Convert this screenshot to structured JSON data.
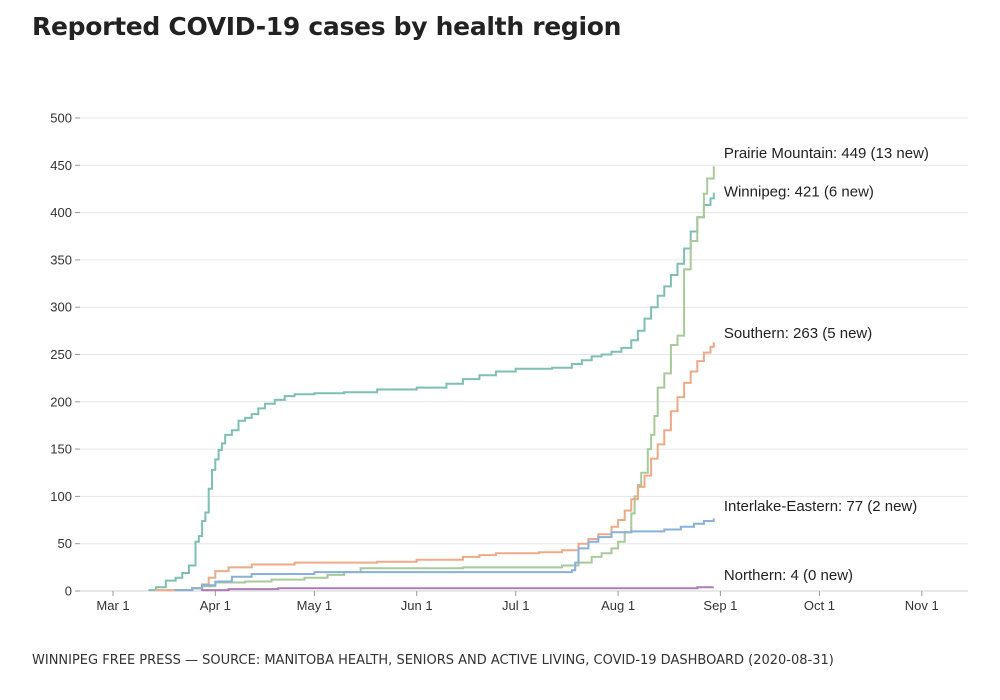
{
  "header": {
    "title": "Reported COVID-19 cases by health region"
  },
  "footer": {
    "source": "WINNIPEG FREE PRESS — SOURCE: MANITOBA HEALTH, SENIORS AND ACTIVE LIVING, COVID-19 DASHBOARD (2020-08-31)"
  },
  "chart_data": {
    "type": "line",
    "title": "Reported COVID-19 cases by health region",
    "xlabel": "",
    "ylabel": "",
    "ylim": [
      0,
      500
    ],
    "yticks": [
      0,
      50,
      100,
      150,
      200,
      250,
      300,
      350,
      400,
      450,
      500
    ],
    "xlim": [
      "2020-02-20",
      "2020-11-15"
    ],
    "xticks": [
      {
        "date": "2020-03-01",
        "label": "Mar 1"
      },
      {
        "date": "2020-04-01",
        "label": "Apr 1"
      },
      {
        "date": "2020-05-01",
        "label": "May 1"
      },
      {
        "date": "2020-06-01",
        "label": "Jun 1"
      },
      {
        "date": "2020-07-01",
        "label": "Jul 1"
      },
      {
        "date": "2020-08-01",
        "label": "Aug 1"
      },
      {
        "date": "2020-09-01",
        "label": "Sep 1"
      },
      {
        "date": "2020-10-01",
        "label": "Oct 1"
      },
      {
        "date": "2020-11-01",
        "label": "Nov 1"
      }
    ],
    "grid": true,
    "step": true,
    "series": [
      {
        "name": "Winnipeg",
        "label": "Winnipeg: 421 (6 new)",
        "color": "#7fbfb3",
        "points": [
          [
            "2020-03-12",
            1
          ],
          [
            "2020-03-14",
            4
          ],
          [
            "2020-03-17",
            11
          ],
          [
            "2020-03-20",
            14
          ],
          [
            "2020-03-22",
            19
          ],
          [
            "2020-03-24",
            27
          ],
          [
            "2020-03-26",
            52
          ],
          [
            "2020-03-27",
            58
          ],
          [
            "2020-03-28",
            74
          ],
          [
            "2020-03-29",
            83
          ],
          [
            "2020-03-30",
            108
          ],
          [
            "2020-03-31",
            128
          ],
          [
            "2020-04-01",
            139
          ],
          [
            "2020-04-02",
            149
          ],
          [
            "2020-04-03",
            156
          ],
          [
            "2020-04-04",
            165
          ],
          [
            "2020-04-06",
            170
          ],
          [
            "2020-04-08",
            180
          ],
          [
            "2020-04-10",
            183
          ],
          [
            "2020-04-12",
            187
          ],
          [
            "2020-04-14",
            193
          ],
          [
            "2020-04-16",
            198
          ],
          [
            "2020-04-19",
            202
          ],
          [
            "2020-04-22",
            206
          ],
          [
            "2020-04-25",
            208
          ],
          [
            "2020-05-01",
            209
          ],
          [
            "2020-05-10",
            210
          ],
          [
            "2020-05-20",
            213
          ],
          [
            "2020-06-01",
            215
          ],
          [
            "2020-06-10",
            219
          ],
          [
            "2020-06-15",
            224
          ],
          [
            "2020-06-20",
            228
          ],
          [
            "2020-06-25",
            232
          ],
          [
            "2020-07-01",
            235
          ],
          [
            "2020-07-12",
            236
          ],
          [
            "2020-07-18",
            240
          ],
          [
            "2020-07-21",
            244
          ],
          [
            "2020-07-24",
            248
          ],
          [
            "2020-07-27",
            250
          ],
          [
            "2020-07-30",
            253
          ],
          [
            "2020-08-02",
            257
          ],
          [
            "2020-08-05",
            265
          ],
          [
            "2020-08-07",
            275
          ],
          [
            "2020-08-09",
            288
          ],
          [
            "2020-08-11",
            300
          ],
          [
            "2020-08-13",
            312
          ],
          [
            "2020-08-15",
            322
          ],
          [
            "2020-08-17",
            334
          ],
          [
            "2020-08-19",
            346
          ],
          [
            "2020-08-21",
            362
          ],
          [
            "2020-08-23",
            380
          ],
          [
            "2020-08-25",
            395
          ],
          [
            "2020-08-27",
            408
          ],
          [
            "2020-08-29",
            415
          ],
          [
            "2020-08-30",
            421
          ]
        ]
      },
      {
        "name": "Prairie Mountain",
        "label": "Prairie Mountain: 449 (13 new)",
        "color": "#a8c99a",
        "points": [
          [
            "2020-03-18",
            1
          ],
          [
            "2020-03-25",
            3
          ],
          [
            "2020-03-28",
            5
          ],
          [
            "2020-04-01",
            9
          ],
          [
            "2020-04-10",
            10
          ],
          [
            "2020-04-18",
            12
          ],
          [
            "2020-04-28",
            14
          ],
          [
            "2020-05-05",
            17
          ],
          [
            "2020-05-10",
            20
          ],
          [
            "2020-05-15",
            24
          ],
          [
            "2020-06-15",
            25
          ],
          [
            "2020-07-15",
            27
          ],
          [
            "2020-07-20",
            30
          ],
          [
            "2020-07-24",
            36
          ],
          [
            "2020-07-27",
            40
          ],
          [
            "2020-07-30",
            45
          ],
          [
            "2020-08-01",
            52
          ],
          [
            "2020-08-03",
            62
          ],
          [
            "2020-08-05",
            82
          ],
          [
            "2020-08-06",
            100
          ],
          [
            "2020-08-07",
            112
          ],
          [
            "2020-08-08",
            125
          ],
          [
            "2020-08-10",
            150
          ],
          [
            "2020-08-11",
            165
          ],
          [
            "2020-08-12",
            185
          ],
          [
            "2020-08-13",
            215
          ],
          [
            "2020-08-15",
            230
          ],
          [
            "2020-08-17",
            260
          ],
          [
            "2020-08-19",
            270
          ],
          [
            "2020-08-21",
            340
          ],
          [
            "2020-08-23",
            370
          ],
          [
            "2020-08-25",
            395
          ],
          [
            "2020-08-27",
            420
          ],
          [
            "2020-08-28",
            436
          ],
          [
            "2020-08-30",
            449
          ]
        ]
      },
      {
        "name": "Southern",
        "label": "Southern: 263 (5 new)",
        "color": "#eeaa88",
        "points": [
          [
            "2020-03-14",
            1
          ],
          [
            "2020-03-25",
            3
          ],
          [
            "2020-03-28",
            7
          ],
          [
            "2020-03-30",
            14
          ],
          [
            "2020-04-01",
            21
          ],
          [
            "2020-04-05",
            25
          ],
          [
            "2020-04-12",
            28
          ],
          [
            "2020-04-25",
            30
          ],
          [
            "2020-05-20",
            31
          ],
          [
            "2020-06-01",
            33
          ],
          [
            "2020-06-15",
            36
          ],
          [
            "2020-06-20",
            38
          ],
          [
            "2020-06-25",
            40
          ],
          [
            "2020-07-08",
            41
          ],
          [
            "2020-07-15",
            43
          ],
          [
            "2020-07-20",
            50
          ],
          [
            "2020-07-23",
            55
          ],
          [
            "2020-07-26",
            60
          ],
          [
            "2020-07-30",
            68
          ],
          [
            "2020-08-01",
            75
          ],
          [
            "2020-08-03",
            85
          ],
          [
            "2020-08-05",
            97
          ],
          [
            "2020-08-07",
            110
          ],
          [
            "2020-08-09",
            122
          ],
          [
            "2020-08-11",
            140
          ],
          [
            "2020-08-13",
            155
          ],
          [
            "2020-08-15",
            170
          ],
          [
            "2020-08-17",
            190
          ],
          [
            "2020-08-19",
            205
          ],
          [
            "2020-08-21",
            220
          ],
          [
            "2020-08-23",
            232
          ],
          [
            "2020-08-25",
            243
          ],
          [
            "2020-08-27",
            252
          ],
          [
            "2020-08-29",
            258
          ],
          [
            "2020-08-30",
            263
          ]
        ]
      },
      {
        "name": "Interlake-Eastern",
        "label": "Interlake-Eastern: 77 (2 new)",
        "color": "#88b0d8",
        "points": [
          [
            "2020-03-20",
            1
          ],
          [
            "2020-03-25",
            3
          ],
          [
            "2020-03-28",
            6
          ],
          [
            "2020-04-01",
            10
          ],
          [
            "2020-04-06",
            15
          ],
          [
            "2020-04-12",
            18
          ],
          [
            "2020-05-01",
            20
          ],
          [
            "2020-07-18",
            22
          ],
          [
            "2020-07-19",
            30
          ],
          [
            "2020-07-20",
            45
          ],
          [
            "2020-07-23",
            52
          ],
          [
            "2020-07-26",
            57
          ],
          [
            "2020-07-30",
            62
          ],
          [
            "2020-08-05",
            63
          ],
          [
            "2020-08-15",
            65
          ],
          [
            "2020-08-20",
            68
          ],
          [
            "2020-08-24",
            71
          ],
          [
            "2020-08-27",
            74
          ],
          [
            "2020-08-30",
            77
          ]
        ]
      },
      {
        "name": "Northern",
        "label": "Northern: 4 (0 new)",
        "color": "#b07ab8",
        "points": [
          [
            "2020-03-28",
            1
          ],
          [
            "2020-04-05",
            2
          ],
          [
            "2020-04-20",
            3
          ],
          [
            "2020-08-25",
            4
          ],
          [
            "2020-08-30",
            4
          ]
        ]
      }
    ]
  }
}
